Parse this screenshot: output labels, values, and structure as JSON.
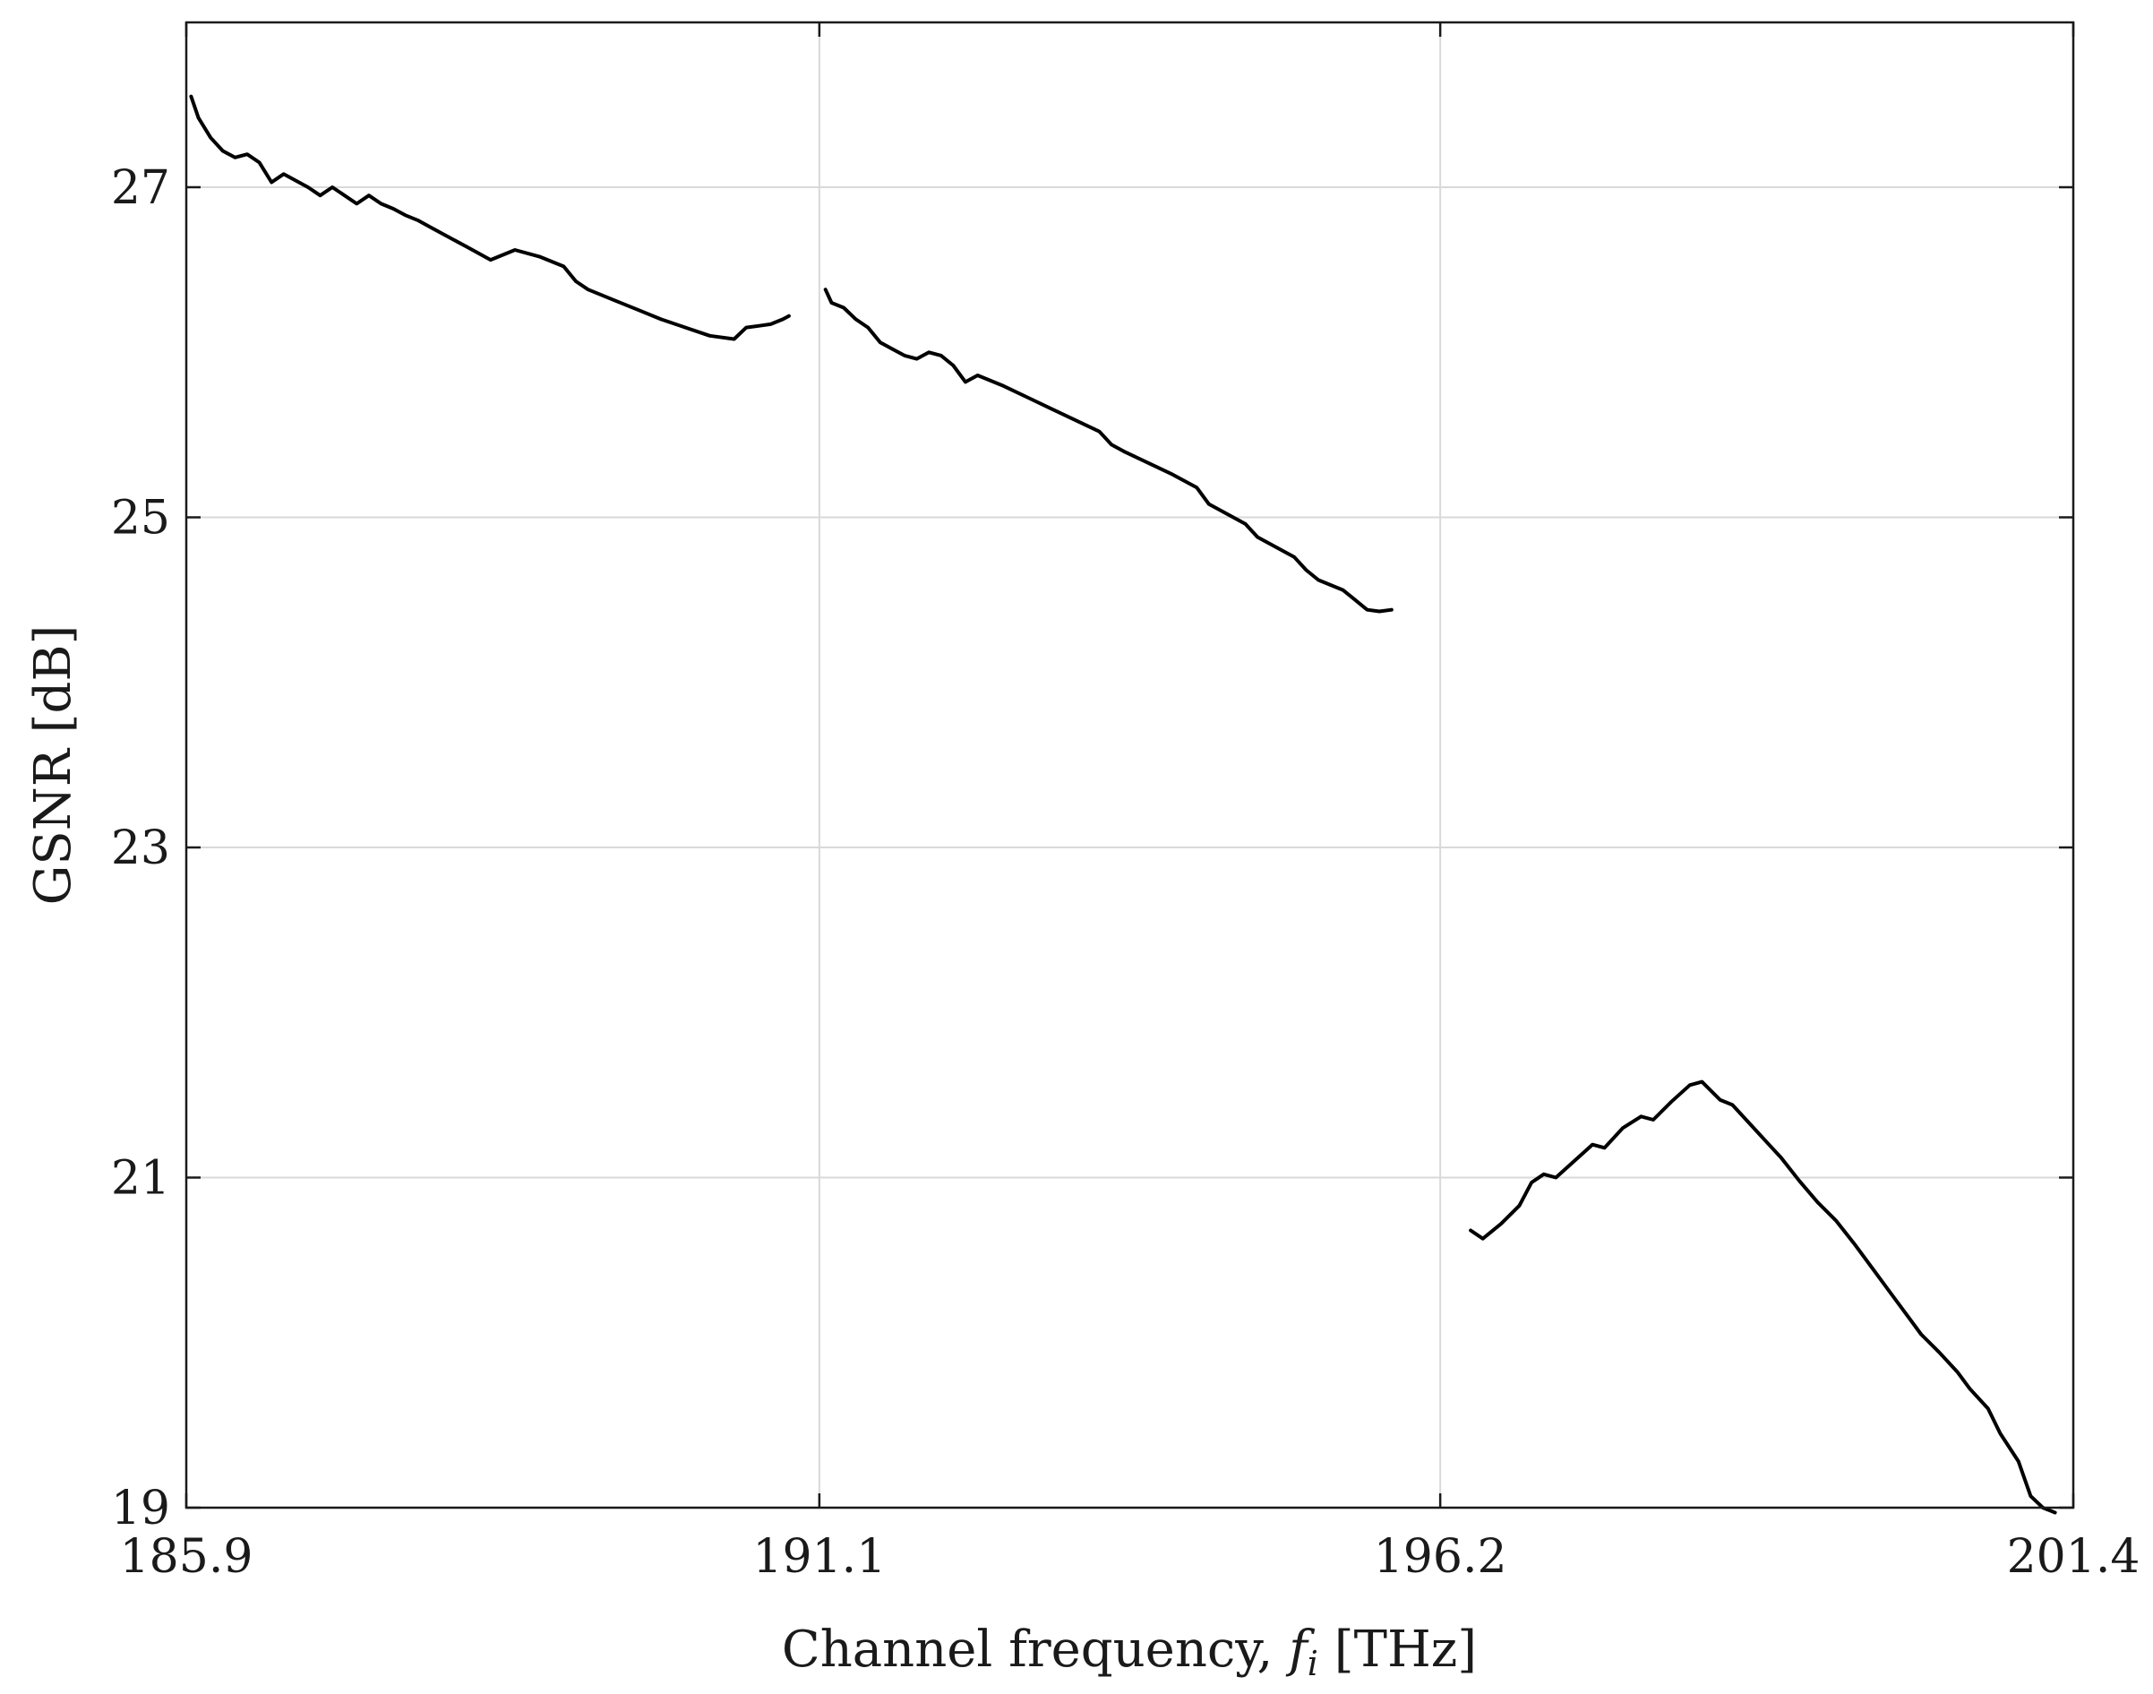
{
  "chart_data": {
    "type": "line",
    "xlabel_prefix": "Channel frequency, ",
    "xlabel_var": "f",
    "xlabel_sub": "i",
    "xlabel_unit": " [THz]",
    "ylabel": "GSNR [dB]",
    "xlim": [
      185.9,
      201.4
    ],
    "ylim": [
      19,
      28
    ],
    "xticks": [
      185.9,
      191.1,
      196.2,
      201.4
    ],
    "xtick_labels": [
      "185.9",
      "191.1",
      "196.2",
      "201.4"
    ],
    "yticks": [
      19,
      21,
      23,
      25,
      27
    ],
    "ytick_labels": [
      "19",
      "21",
      "23",
      "25",
      "27"
    ],
    "grid": true,
    "series": [
      {
        "x": [
          185.94,
          186.0,
          186.1,
          186.2,
          186.3,
          186.4,
          186.5,
          186.6,
          186.7,
          186.8,
          186.9,
          187.0,
          187.1,
          187.2,
          187.3,
          187.4,
          187.5,
          187.6,
          187.7,
          187.8,
          187.9,
          188.0,
          188.2,
          188.4,
          188.6,
          188.8,
          189.0,
          189.1,
          189.2,
          189.4,
          189.6,
          189.8,
          190.0,
          190.2,
          190.4,
          190.5,
          190.6,
          190.7,
          190.8,
          190.85
        ],
        "y": [
          27.55,
          27.42,
          27.3,
          27.22,
          27.18,
          27.2,
          27.15,
          27.03,
          27.08,
          27.04,
          27.0,
          26.95,
          27.0,
          26.95,
          26.9,
          26.95,
          26.9,
          26.87,
          26.83,
          26.8,
          26.76,
          26.72,
          26.64,
          26.56,
          26.62,
          26.58,
          26.52,
          26.43,
          26.38,
          26.32,
          26.26,
          26.2,
          26.15,
          26.1,
          26.08,
          26.15,
          26.16,
          26.17,
          26.2,
          26.22
        ]
      },
      {
        "x": [
          191.15,
          191.2,
          191.3,
          191.4,
          191.5,
          191.6,
          191.7,
          191.8,
          191.9,
          192.0,
          192.1,
          192.2,
          192.3,
          192.4,
          192.6,
          192.8,
          193.0,
          193.2,
          193.4,
          193.5,
          193.6,
          193.8,
          194.0,
          194.2,
          194.3,
          194.4,
          194.6,
          194.7,
          194.8,
          195.0,
          195.1,
          195.2,
          195.4,
          195.5,
          195.6,
          195.7,
          195.8
        ],
        "y": [
          26.38,
          26.3,
          26.27,
          26.2,
          26.15,
          26.06,
          26.02,
          25.98,
          25.96,
          26.0,
          25.98,
          25.92,
          25.82,
          25.86,
          25.8,
          25.73,
          25.66,
          25.59,
          25.52,
          25.44,
          25.4,
          25.33,
          25.26,
          25.18,
          25.08,
          25.04,
          24.96,
          24.88,
          24.84,
          24.76,
          24.68,
          24.62,
          24.56,
          24.5,
          24.44,
          24.43,
          24.44
        ]
      },
      {
        "x": [
          196.45,
          196.55,
          196.7,
          196.85,
          196.95,
          197.05,
          197.15,
          197.3,
          197.45,
          197.55,
          197.7,
          197.85,
          197.95,
          198.1,
          198.25,
          198.35,
          198.5,
          198.6,
          198.75,
          198.9,
          199.0,
          199.15,
          199.3,
          199.45,
          199.6,
          199.75,
          199.9,
          200.05,
          200.15,
          200.3,
          200.45,
          200.55,
          200.7,
          200.8,
          200.95
        ],
        "y": [
          20.68,
          20.63,
          20.72,
          20.83,
          20.97,
          21.02,
          21.0,
          21.1,
          21.2,
          21.18,
          21.3,
          21.37,
          21.35,
          21.46,
          21.56,
          21.58,
          21.47,
          21.44,
          21.32,
          21.2,
          21.12,
          20.98,
          20.85,
          20.74,
          20.6,
          20.45,
          20.3,
          20.15,
          20.05,
          19.94,
          19.82,
          19.72,
          19.6,
          19.45,
          19.28
        ]
      }
    ],
    "series_tail": [
      [],
      [],
      {
        "x": [
          200.95,
          201.05,
          201.15,
          201.25
        ],
        "y": [
          19.28,
          19.07,
          19.0,
          18.97
        ]
      }
    ]
  }
}
